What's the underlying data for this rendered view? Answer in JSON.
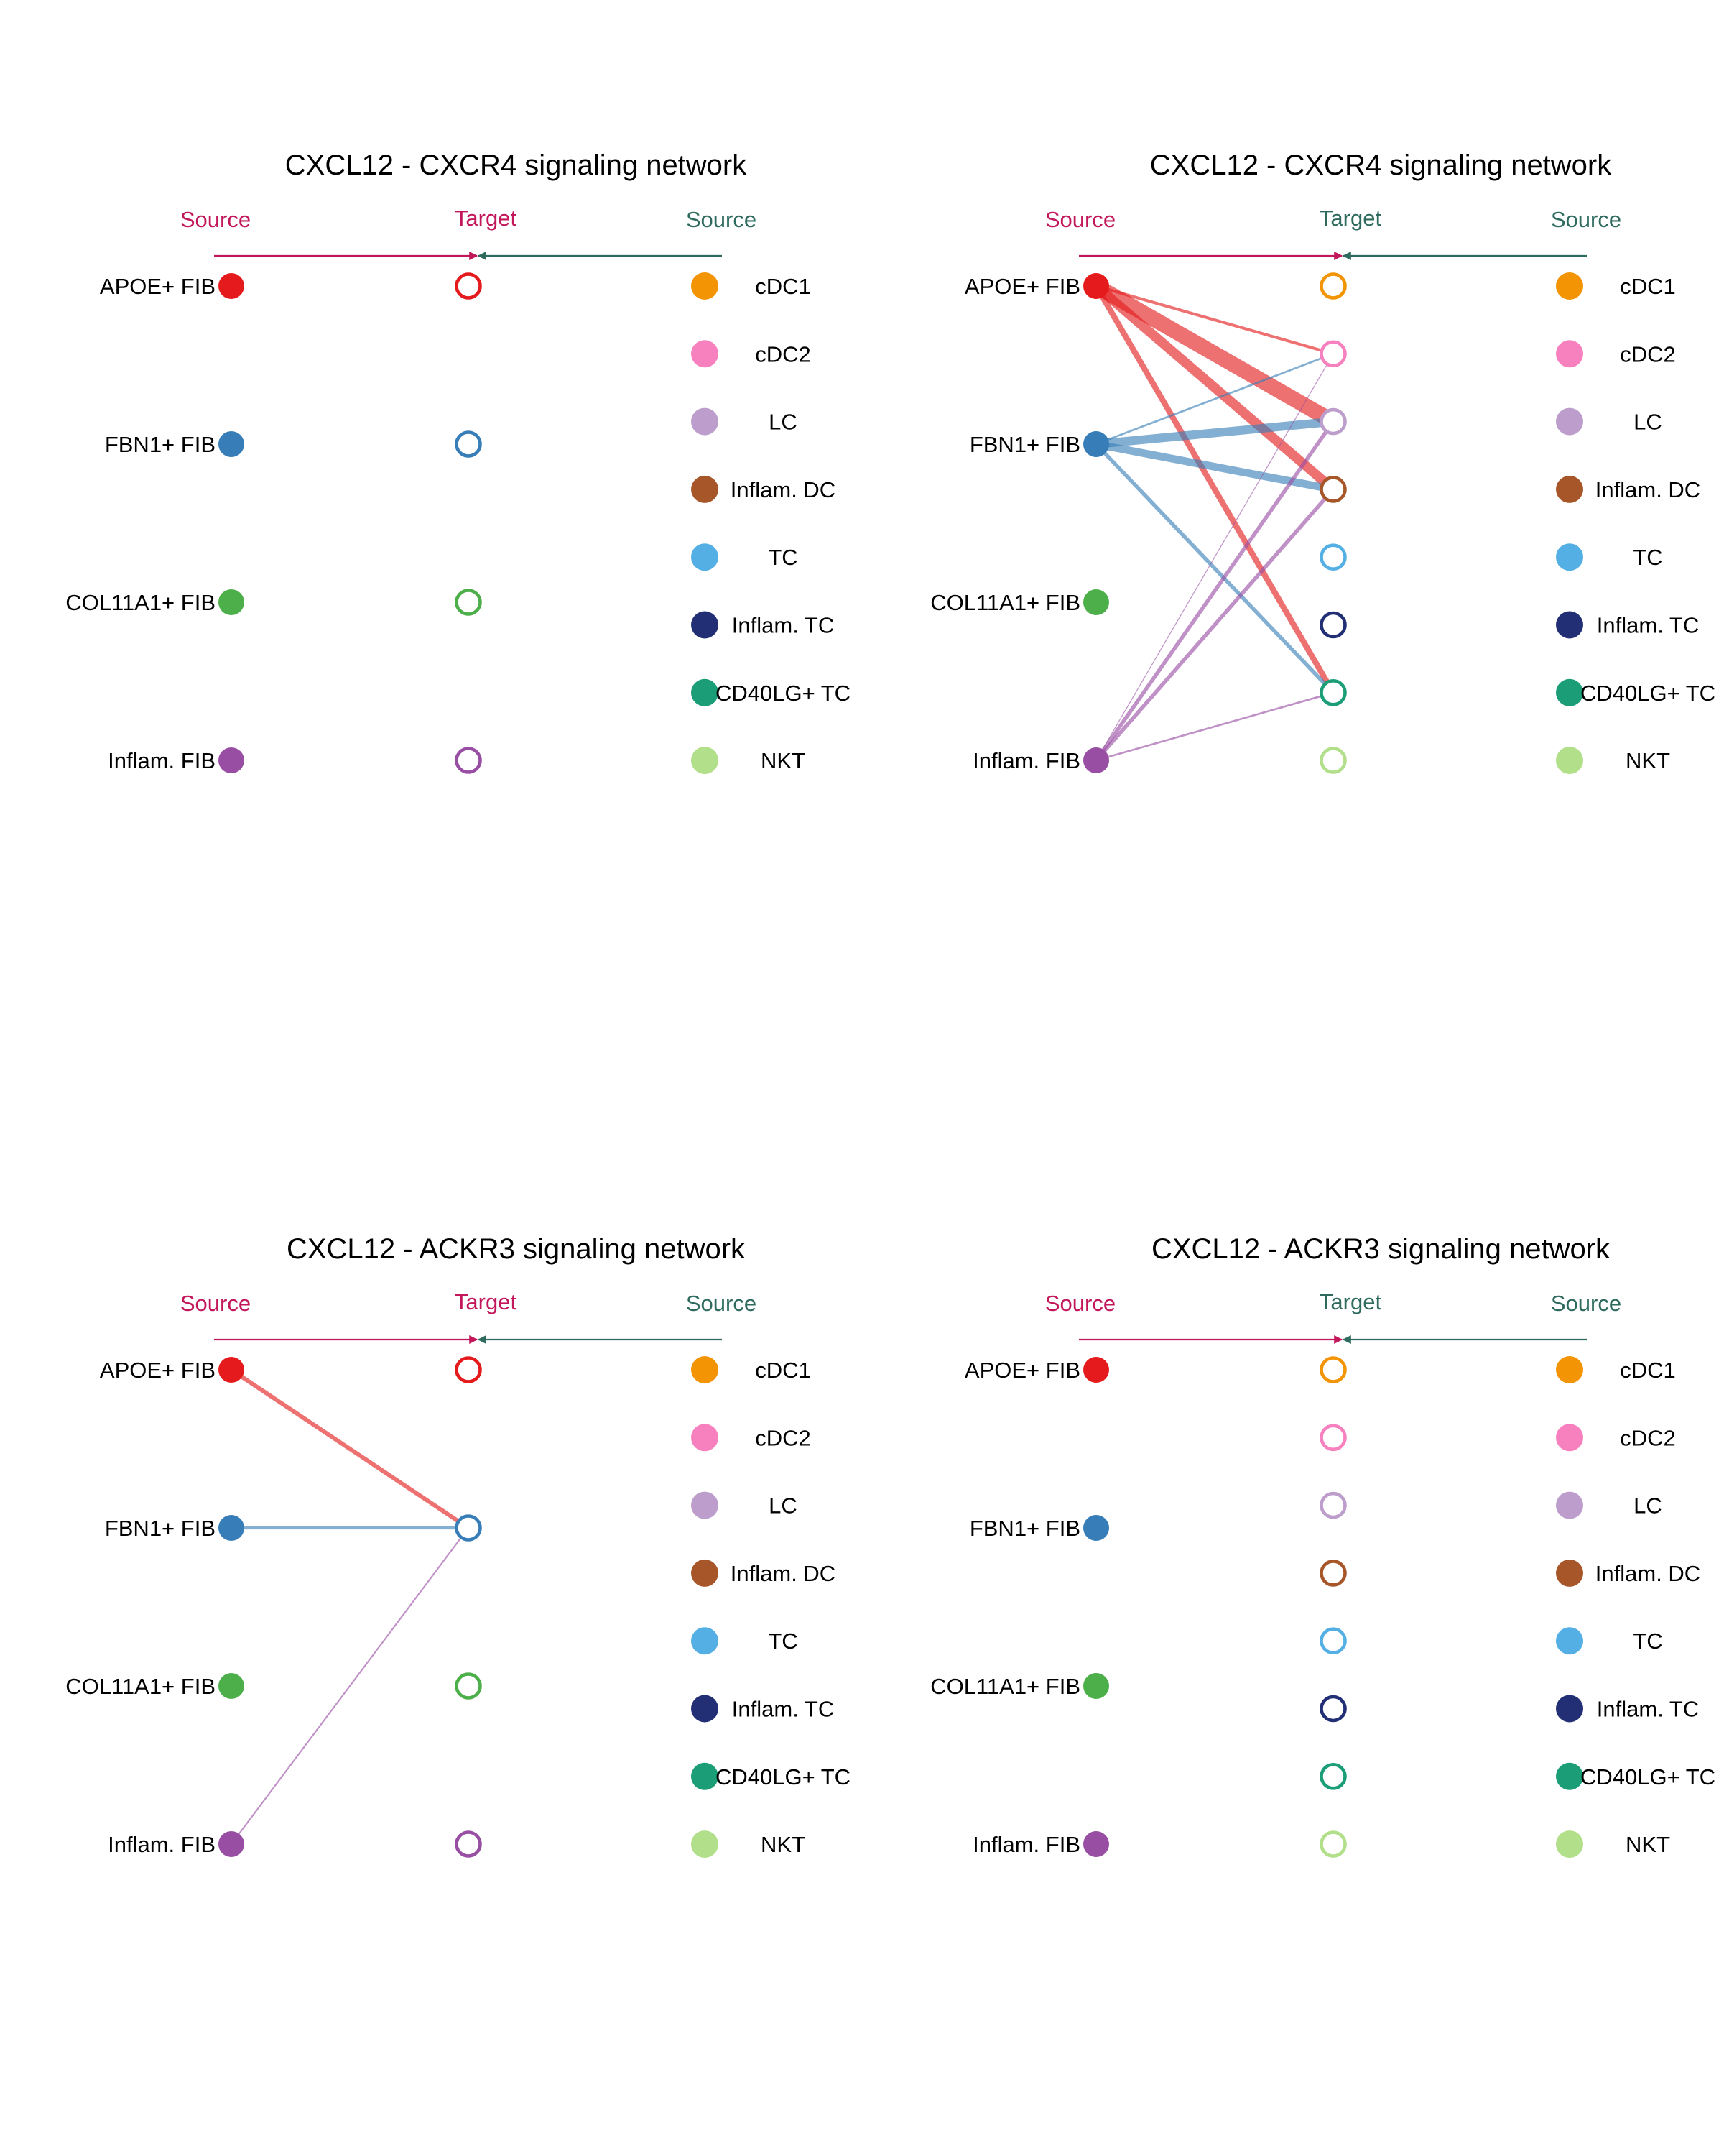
{
  "colors": {
    "source_left": "#C2185B",
    "source_right": "#2E6B5E",
    "cells": {
      "APOE+ FIB": "#E41A1C",
      "FBN1+ FIB": "#377EB8",
      "COL11A1+ FIB": "#4DAF4A",
      "Inflam. FIB": "#984EA3",
      "cDC1": "#F29403",
      "cDC2": "#F781BF",
      "LC": "#BC9DCC",
      "Inflam. DC": "#A65628",
      "TC": "#54B0E4",
      "Inflam. TC": "#222F75",
      "CD40LG+ TC": "#1B9E77",
      "NKT": "#B2DF8A"
    }
  },
  "labels": {
    "source": "Source",
    "target": "Target"
  },
  "panels": [
    {
      "title": "CXCL12 - CXCR4 signaling network",
      "side": "left",
      "left_nodes": [
        "APOE+ FIB",
        "FBN1+ FIB",
        "COL11A1+ FIB",
        "Inflam. FIB"
      ],
      "target_nodes": [
        "APOE+ FIB",
        "FBN1+ FIB",
        "COL11A1+ FIB",
        "Inflam. FIB"
      ],
      "right_nodes": [
        "cDC1",
        "cDC2",
        "LC",
        "Inflam. DC",
        "TC",
        "Inflam. TC",
        "CD40LG+ TC",
        "NKT"
      ],
      "edges": []
    },
    {
      "title": "CXCL12 - CXCR4 signaling network",
      "side": "right",
      "left_nodes": [
        "APOE+ FIB",
        "FBN1+ FIB",
        "COL11A1+ FIB",
        "Inflam. FIB"
      ],
      "target_nodes": [
        "cDC1",
        "cDC2",
        "LC",
        "Inflam. DC",
        "TC",
        "Inflam. TC",
        "CD40LG+ TC",
        "NKT"
      ],
      "right_nodes": [
        "cDC1",
        "cDC2",
        "LC",
        "Inflam. DC",
        "TC",
        "Inflam. TC",
        "CD40LG+ TC",
        "NKT"
      ],
      "edges": [
        {
          "from": "APOE+ FIB",
          "to": "cDC2",
          "weight": 1.5
        },
        {
          "from": "APOE+ FIB",
          "to": "LC",
          "weight": 8
        },
        {
          "from": "APOE+ FIB",
          "to": "Inflam. DC",
          "weight": 5
        },
        {
          "from": "APOE+ FIB",
          "to": "CD40LG+ TC",
          "weight": 3
        },
        {
          "from": "FBN1+ FIB",
          "to": "cDC2",
          "weight": 1
        },
        {
          "from": "FBN1+ FIB",
          "to": "LC",
          "weight": 4.5
        },
        {
          "from": "FBN1+ FIB",
          "to": "Inflam. DC",
          "weight": 4
        },
        {
          "from": "FBN1+ FIB",
          "to": "CD40LG+ TC",
          "weight": 2
        },
        {
          "from": "Inflam. FIB",
          "to": "cDC2",
          "weight": 0.4
        },
        {
          "from": "Inflam. FIB",
          "to": "LC",
          "weight": 2
        },
        {
          "from": "Inflam. FIB",
          "to": "Inflam. DC",
          "weight": 2
        },
        {
          "from": "Inflam. FIB",
          "to": "CD40LG+ TC",
          "weight": 1
        }
      ]
    },
    {
      "title": "CXCL12 - ACKR3 signaling network",
      "side": "left",
      "left_nodes": [
        "APOE+ FIB",
        "FBN1+ FIB",
        "COL11A1+ FIB",
        "Inflam. FIB"
      ],
      "target_nodes": [
        "APOE+ FIB",
        "FBN1+ FIB",
        "COL11A1+ FIB",
        "Inflam. FIB"
      ],
      "right_nodes": [
        "cDC1",
        "cDC2",
        "LC",
        "Inflam. DC",
        "TC",
        "Inflam. TC",
        "CD40LG+ TC",
        "NKT"
      ],
      "edges": [
        {
          "from": "APOE+ FIB",
          "to": "FBN1+ FIB",
          "weight": 2.2
        },
        {
          "from": "FBN1+ FIB",
          "to": "FBN1+ FIB",
          "weight": 1.6
        },
        {
          "from": "Inflam. FIB",
          "to": "FBN1+ FIB",
          "weight": 0.8
        }
      ]
    },
    {
      "title": "CXCL12 - ACKR3 signaling network",
      "side": "right",
      "left_nodes": [
        "APOE+ FIB",
        "FBN1+ FIB",
        "COL11A1+ FIB",
        "Inflam. FIB"
      ],
      "target_nodes": [
        "cDC1",
        "cDC2",
        "LC",
        "Inflam. DC",
        "TC",
        "Inflam. TC",
        "CD40LG+ TC",
        "NKT"
      ],
      "right_nodes": [
        "cDC1",
        "cDC2",
        "LC",
        "Inflam. DC",
        "TC",
        "Inflam. TC",
        "CD40LG+ TC",
        "NKT"
      ],
      "edges": []
    }
  ]
}
